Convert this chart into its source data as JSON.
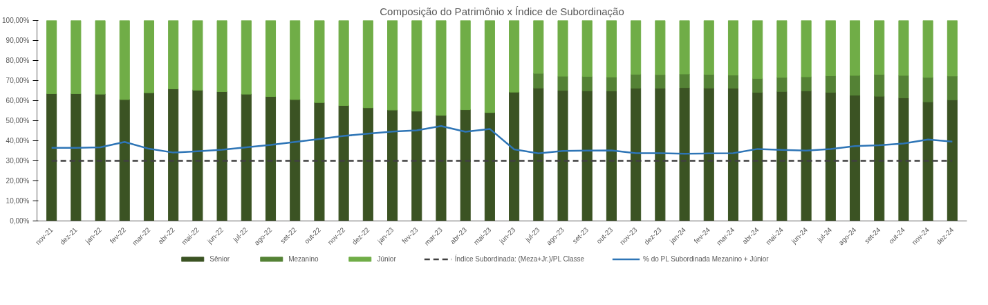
{
  "chart_data": {
    "type": "bar",
    "stacked": true,
    "title": "Composição do Patrimônio x Índice de Subordinação",
    "categories": [
      "nov-21",
      "dez-21",
      "jan-22",
      "fev-22",
      "mar-22",
      "abr-22",
      "mai-22",
      "jun-22",
      "jul-22",
      "ago-22",
      "set-22",
      "out-22",
      "nov-22",
      "dez-22",
      "jan-23",
      "fev-23",
      "mar-23",
      "abr-23",
      "mai-23",
      "jun-23",
      "jul-23",
      "ago-23",
      "set-23",
      "out-23",
      "nov-23",
      "dez-23",
      "jan-24",
      "fev-24",
      "mar-24",
      "abr-24",
      "mai-24",
      "jun-24",
      "jul-24",
      "ago-24",
      "set-24",
      "out-24",
      "nov-24",
      "dez-24"
    ],
    "series": [
      {
        "name": "Sênior",
        "color": "#3b5323",
        "values": [
          63.5,
          63.5,
          63.3,
          60.6,
          64.0,
          65.9,
          65.3,
          64.5,
          63.3,
          62.1,
          60.6,
          59.1,
          57.6,
          56.5,
          55.4,
          54.8,
          52.7,
          55.5,
          54.1,
          64.3,
          66.3,
          65.1,
          64.9,
          64.8,
          66.2,
          66.2,
          66.5,
          66.3,
          66.2,
          64.1,
          64.6,
          64.9,
          64.1,
          62.7,
          62.2,
          61.4,
          59.4,
          60.4
        ]
      },
      {
        "name": "Mezanino",
        "color": "#548235",
        "values": [
          0,
          0,
          0,
          0,
          0,
          0,
          0,
          0,
          0,
          0,
          0,
          0,
          0,
          0,
          0,
          0,
          0,
          0,
          0,
          0,
          7.3,
          7.1,
          7.2,
          7.0,
          7.0,
          6.8,
          6.8,
          6.8,
          6.6,
          7.0,
          7.0,
          7.0,
          8.3,
          9.9,
          10.9,
          11.2,
          12.2,
          11.9
        ]
      },
      {
        "name": "Júnior",
        "color": "#70ad47",
        "values": [
          36.5,
          36.5,
          36.7,
          39.4,
          36.0,
          34.1,
          34.7,
          35.5,
          36.7,
          37.9,
          39.4,
          40.9,
          42.4,
          43.5,
          44.6,
          45.2,
          47.3,
          44.5,
          45.9,
          35.7,
          26.4,
          27.8,
          27.9,
          28.2,
          26.8,
          27.0,
          26.7,
          26.9,
          27.2,
          28.9,
          28.4,
          28.1,
          27.6,
          27.4,
          26.9,
          27.4,
          28.4,
          27.7
        ]
      },
      {
        "name": "% do PL Subordinada Mezanino + Júnior",
        "type": "line",
        "color": "#2e75b6",
        "line_style": "solid",
        "values": [
          36.5,
          36.5,
          36.7,
          39.4,
          36.0,
          34.1,
          34.7,
          35.5,
          36.7,
          37.9,
          39.4,
          40.9,
          42.4,
          43.5,
          44.6,
          45.2,
          47.3,
          44.5,
          45.9,
          35.7,
          33.7,
          34.9,
          35.1,
          35.2,
          33.8,
          33.8,
          33.5,
          33.7,
          33.8,
          35.9,
          35.4,
          35.1,
          35.9,
          37.3,
          37.8,
          38.6,
          40.6,
          39.6
        ]
      }
    ],
    "ref_lines": [
      {
        "axis": "y",
        "value": 30,
        "label": "Índice Subordinada: (Meza+Jr.)/PL Classe",
        "color": "#404040",
        "line_style": "dashed"
      }
    ],
    "ylim": [
      0,
      100
    ],
    "yticks": [
      {
        "value": 0,
        "label": "0,00%"
      },
      {
        "value": 10,
        "label": "10,00%"
      },
      {
        "value": 20,
        "label": "20,00%"
      },
      {
        "value": 30,
        "label": "30,00%"
      },
      {
        "value": 40,
        "label": "40,00%"
      },
      {
        "value": 50,
        "label": "50,00%"
      },
      {
        "value": 60,
        "label": "60,00%"
      },
      {
        "value": 70,
        "label": "70,00%"
      },
      {
        "value": 80,
        "label": "80,00%"
      },
      {
        "value": 90,
        "label": "90,00%"
      },
      {
        "value": 100,
        "label": "100,00%"
      }
    ],
    "grid": false,
    "legend": "bottom"
  }
}
